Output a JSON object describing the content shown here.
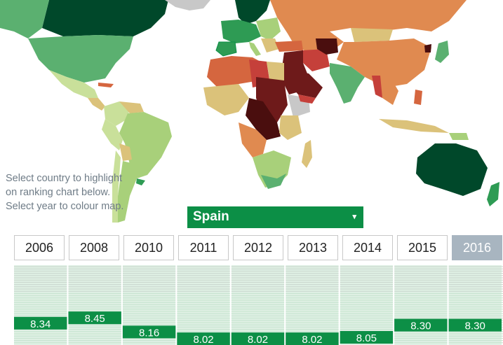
{
  "hint": "Select country to highlight on ranking chart below. Select year to colour map.",
  "selector": {
    "value": "Spain",
    "chevron": "▾"
  },
  "years": [
    "2006",
    "2008",
    "2010",
    "2011",
    "2012",
    "2013",
    "2014",
    "2015",
    "2016"
  ],
  "active_year": "2016",
  "colors": {
    "darkgreen": "#00482a",
    "green": "#2e9b54",
    "midgreen": "#5bb070",
    "lightgreen": "#a8d07a",
    "palegreen": "#c9e09a",
    "tan": "#dbc27a",
    "orange": "#e08a50",
    "darkorange": "#d5663f",
    "red": "#c5403a",
    "darkred": "#6e1a1a",
    "maroon": "#4a0e0e",
    "grey": "#c8c8c8",
    "band_bg": "#dff0e4",
    "band_line": "#c4e3cd",
    "highlight": "#0c8f46"
  },
  "chart_data": {
    "type": "line",
    "series": [
      {
        "name": "Spain",
        "x": [
          "2006",
          "2008",
          "2010",
          "2011",
          "2012",
          "2013",
          "2014",
          "2015",
          "2016"
        ],
        "values": [
          8.34,
          8.45,
          8.16,
          8.02,
          8.02,
          8.02,
          8.05,
          8.3,
          8.3
        ],
        "labels": [
          "8.34",
          "8.45",
          "8.16",
          "8.02",
          "8.02",
          "8.02",
          "8.05",
          "8.30",
          "8.30"
        ]
      }
    ],
    "ylim": [
      7.95,
      9.5
    ],
    "grid": true
  }
}
